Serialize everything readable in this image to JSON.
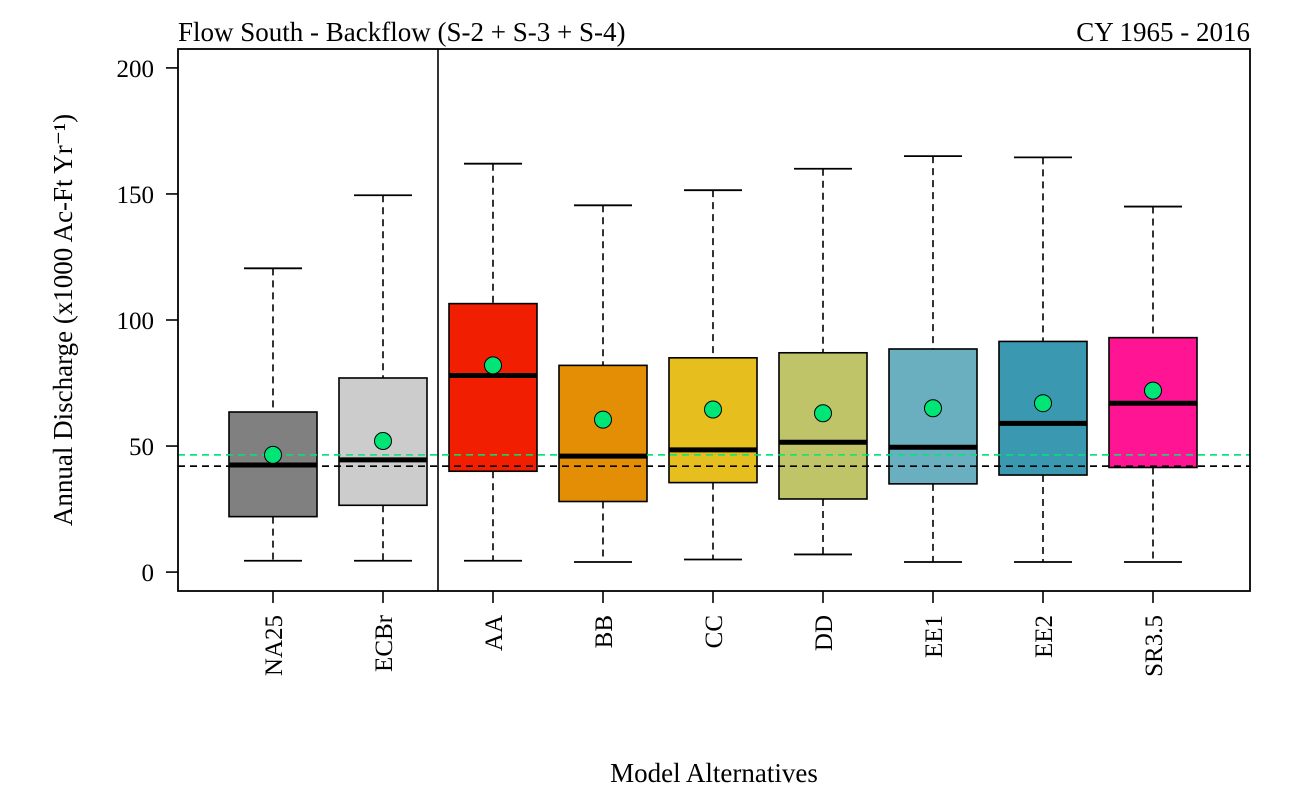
{
  "chart_data": {
    "type": "box",
    "title_left": "Flow South - Backflow (S-2 + S-3 + S-4)",
    "title_right": "CY 1965 - 2016",
    "xlabel": "Model Alternatives",
    "ylabel": "Annual Discharge (x1000 Ac-Ft Yr⁻¹)",
    "ylim": [
      -7.5,
      207.5
    ],
    "yticks": [
      0,
      50,
      100,
      150,
      200
    ],
    "ytick_labels": [
      "0",
      "50",
      "100",
      "150",
      "200"
    ],
    "grid": false,
    "reference_lines": [
      {
        "value": 42,
        "color": "#000000",
        "style": "dashed"
      },
      {
        "value": 46.5,
        "color": "#00E676",
        "style": "dashed"
      }
    ],
    "mean_marker_color": "#00E676",
    "categories": [
      "NA25",
      "ECBr",
      "AA",
      "BB",
      "CC",
      "DD",
      "EE1",
      "EE2",
      "SR3.5"
    ],
    "separator_after_index": 1,
    "boxes": [
      {
        "name": "NA25",
        "color": "#808080",
        "min": 4.5,
        "q1": 22,
        "median": 42.5,
        "q3": 63.5,
        "max": 120.5,
        "mean": 46.5
      },
      {
        "name": "ECBr",
        "color": "#CCCCCC",
        "min": 4.5,
        "q1": 26.5,
        "median": 44.5,
        "q3": 77,
        "max": 149.5,
        "mean": 52
      },
      {
        "name": "AA",
        "color": "#F21E02",
        "min": 4.5,
        "q1": 40,
        "median": 78,
        "q3": 106.5,
        "max": 162,
        "mean": 82
      },
      {
        "name": "BB",
        "color": "#E38E05",
        "min": 4,
        "q1": 28,
        "median": 46,
        "q3": 82,
        "max": 145.5,
        "mean": 60.5
      },
      {
        "name": "CC",
        "color": "#E6BF1F",
        "min": 5,
        "q1": 35.5,
        "median": 48.5,
        "q3": 85,
        "max": 151.5,
        "mean": 64.5
      },
      {
        "name": "DD",
        "color": "#BFC469",
        "min": 7,
        "q1": 29,
        "median": 51.5,
        "q3": 87,
        "max": 160,
        "mean": 63
      },
      {
        "name": "EE1",
        "color": "#69AFBF",
        "min": 4,
        "q1": 35,
        "median": 49.5,
        "q3": 88.5,
        "max": 165,
        "mean": 65
      },
      {
        "name": "EE2",
        "color": "#3A98B1",
        "min": 4,
        "q1": 38.5,
        "median": 59,
        "q3": 91.5,
        "max": 164.5,
        "mean": 67
      },
      {
        "name": "SR3.5",
        "color": "#FF1493",
        "min": 4,
        "q1": 41.5,
        "median": 67,
        "q3": 93,
        "max": 145,
        "mean": 72
      }
    ]
  }
}
